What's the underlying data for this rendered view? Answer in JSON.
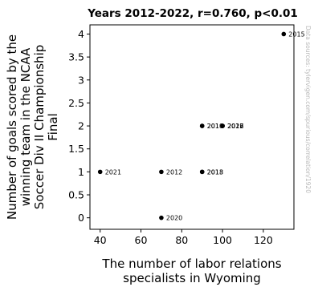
{
  "chart_data": {
    "type": "scatter",
    "title": "Years 2012-2022, r=0.760, p<0.01",
    "xlabel": [
      "The number of labor relations",
      "specialists in Wyoming"
    ],
    "ylabel": [
      "Number of goals scored by the",
      "winning team in the NCAA",
      "Soccer Div II Championship",
      "Final"
    ],
    "xlim": [
      35,
      135
    ],
    "ylim": [
      -0.25,
      4.2
    ],
    "xticks": [
      40,
      60,
      80,
      100,
      120
    ],
    "yticks": [
      0,
      0.5,
      1,
      1.5,
      2,
      2.5,
      3,
      3.5,
      4
    ],
    "ytick_labels": [
      "0",
      "0.5",
      "1",
      "1.5",
      "2",
      "2.5",
      "3",
      "3.5",
      "4"
    ],
    "grid": false,
    "points": [
      {
        "label": "2012",
        "x": 70,
        "y": 1
      },
      {
        "label": "2013",
        "x": 90,
        "y": 1
      },
      {
        "label": "2014",
        "x": 90,
        "y": 2
      },
      {
        "label": "2015",
        "x": 130,
        "y": 4
      },
      {
        "label": "2016",
        "x": 100,
        "y": 2
      },
      {
        "label": "2017",
        "x": 100,
        "y": 2
      },
      {
        "label": "2018",
        "x": 90,
        "y": 1
      },
      {
        "label": "2019",
        "x": 90,
        "y": 2
      },
      {
        "label": "2020",
        "x": 70,
        "y": 0
      },
      {
        "label": "2021",
        "x": 40,
        "y": 1
      },
      {
        "label": "2022",
        "x": 100,
        "y": 2
      }
    ],
    "watermark": "Data sources: tylervigen.com/spurious/correlation/1920"
  }
}
